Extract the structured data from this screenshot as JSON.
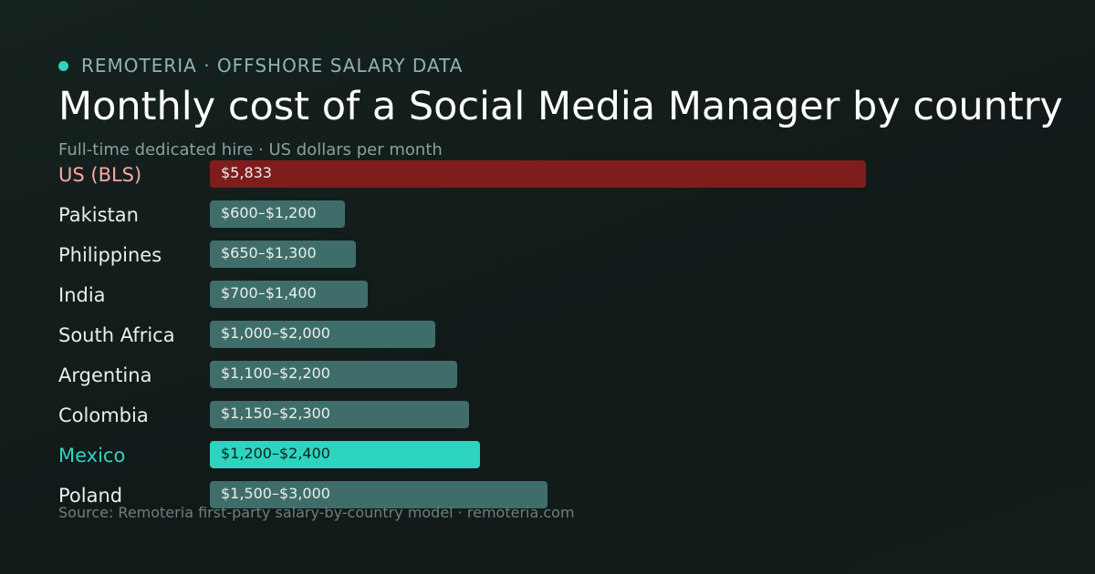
{
  "header": {
    "kicker": "REMOTERIA · OFFSHORE SALARY DATA",
    "title": "Monthly cost of a Social Media Manager by country",
    "subtitle": "Full-time dedicated hire · US dollars per month"
  },
  "footer": {
    "source": "Source: Remoteria first-party salary-by-country model · remoteria.com"
  },
  "colors": {
    "accent": "#2dd4bf",
    "us_bar": "#7f1d1d",
    "us_label": "#fca5a5",
    "range_bar": "#3f6e6a",
    "highlight_bar": "#2dd4bf",
    "highlight_label": "#2dd4bf",
    "highlight_value_text": "#10211f"
  },
  "chart_data": {
    "type": "bar",
    "orientation": "horizontal",
    "x_max": 7200,
    "categories": [
      "US (BLS)",
      "Pakistan",
      "Philippines",
      "India",
      "South Africa",
      "Argentina",
      "Colombia",
      "Mexico",
      "Poland"
    ],
    "series": [
      {
        "values": [
          5833,
          1200,
          1300,
          1400,
          2000,
          2200,
          2300,
          2400,
          3000
        ],
        "range_low": [
          null,
          600,
          650,
          700,
          1000,
          1100,
          1150,
          1200,
          1500
        ]
      }
    ],
    "data_labels": [
      "$5,833",
      "$600–$1,200",
      "$650–$1,300",
      "$700–$1,400",
      "$1,000–$2,000",
      "$1,100–$2,200",
      "$1,150–$2,300",
      "$1,200–$2,400",
      "$1,500–$3,000"
    ],
    "highlights": {
      "US (BLS)": "us",
      "Mexico": "highlight"
    }
  }
}
